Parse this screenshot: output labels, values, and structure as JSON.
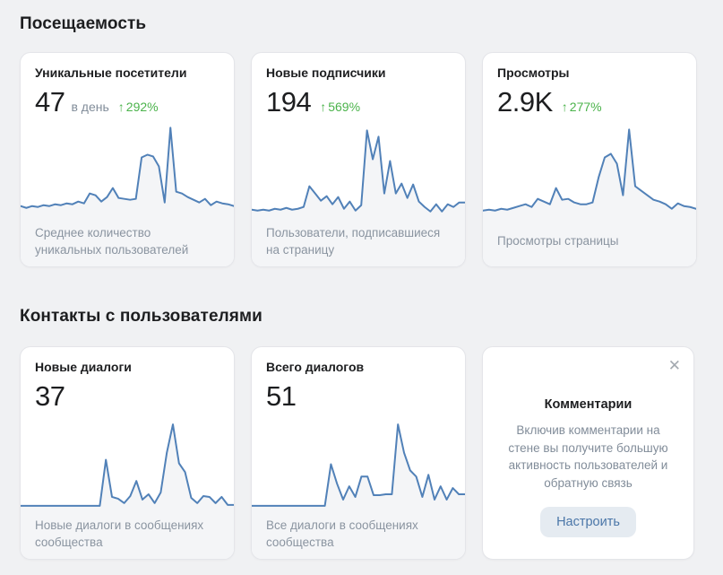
{
  "colors": {
    "page_bg": "#f0f1f3",
    "card_bg": "#ffffff",
    "line_blue": "#5181b8",
    "chart_fill": "#f4f5f7",
    "text_primary": "#1d1e20",
    "text_secondary": "#818c99",
    "trend_green": "#4bb34b",
    "button_bg": "#e5ebf1",
    "button_text": "#4a76a8",
    "close_icon": "#a3a9b0"
  },
  "sections": [
    {
      "title": "Посещаемость",
      "cards": [
        {
          "title": "Уникальные посетители",
          "value": "47",
          "unit": "в день",
          "trend_arrow": "↑",
          "trend": "292%",
          "caption": "Среднее количество уникальных пользователей"
        },
        {
          "title": "Новые подписчики",
          "value": "194",
          "trend_arrow": "↑",
          "trend": "569%",
          "caption": "Пользователи, подписавшиеся на страницу"
        },
        {
          "title": "Просмотры",
          "value": "2.9K",
          "trend_arrow": "↑",
          "trend": "277%",
          "caption": "Просмотры страницы"
        }
      ]
    },
    {
      "title": "Контакты с пользователями",
      "cards": [
        {
          "title": "Новые диалоги",
          "value": "37",
          "caption": "Новые диалоги в сообщениях сообщества"
        },
        {
          "title": "Всего диалогов",
          "value": "51",
          "caption": "Все диалоги в сообщениях сообщества"
        }
      ]
    }
  ],
  "promo": {
    "close_glyph": "✕",
    "title": "Комментарии",
    "text": "Включив комментарии на стене вы получите большую активность пользователей и обратную связь",
    "button_label": "Настроить"
  },
  "chart_data": [
    {
      "type": "line",
      "name": "Уникальные посетители",
      "note": "sparkline, no axes; values are relative heights 0-100",
      "color": "#5181b8",
      "fill": "#f4f5f7",
      "values": [
        8,
        6,
        8,
        7,
        9,
        8,
        10,
        9,
        11,
        10,
        13,
        11,
        22,
        20,
        13,
        18,
        28,
        17,
        16,
        15,
        16,
        62,
        65,
        63,
        52,
        12,
        95,
        24,
        22,
        18,
        15,
        12,
        16,
        9,
        13,
        11,
        10,
        8
      ]
    },
    {
      "type": "line",
      "name": "Новые подписчики",
      "note": "sparkline, no axes; values are relative heights 0-100",
      "color": "#5181b8",
      "fill": "#f4f5f7",
      "values": [
        4,
        3,
        4,
        3,
        5,
        4,
        6,
        4,
        5,
        7,
        30,
        22,
        14,
        19,
        10,
        18,
        5,
        13,
        3,
        9,
        92,
        60,
        85,
        22,
        58,
        22,
        33,
        17,
        32,
        13,
        7,
        2,
        10,
        2,
        10,
        7,
        12,
        12
      ]
    },
    {
      "type": "line",
      "name": "Просмотры",
      "note": "sparkline, no axes; values are relative heights 0-100",
      "color": "#5181b8",
      "fill": "#f4f5f7",
      "values": [
        3,
        4,
        3,
        5,
        4,
        6,
        8,
        10,
        7,
        16,
        13,
        10,
        28,
        15,
        16,
        12,
        10,
        10,
        12,
        40,
        62,
        66,
        55,
        20,
        93,
        30,
        25,
        20,
        15,
        13,
        10,
        5,
        11,
        8,
        7,
        5
      ]
    },
    {
      "type": "line",
      "name": "Новые диалоги",
      "note": "sparkline, no axes; values are relative heights 0-100",
      "color": "#5181b8",
      "fill": "#f4f5f7",
      "values": [
        0,
        0,
        0,
        0,
        0,
        0,
        0,
        0,
        0,
        0,
        0,
        0,
        0,
        0,
        52,
        10,
        8,
        3,
        11,
        28,
        7,
        13,
        3,
        15,
        60,
        92,
        48,
        38,
        9,
        3,
        11,
        10,
        3,
        10,
        1,
        1
      ]
    },
    {
      "type": "line",
      "name": "Всего диалогов",
      "note": "sparkline, no axes; values are relative heights 0-100",
      "color": "#5181b8",
      "fill": "#f4f5f7",
      "values": [
        0,
        0,
        0,
        0,
        0,
        0,
        0,
        0,
        0,
        0,
        0,
        0,
        0,
        47,
        25,
        7,
        22,
        10,
        33,
        33,
        12,
        12,
        13,
        13,
        92,
        60,
        40,
        33,
        10,
        35,
        7,
        22,
        7,
        20,
        13,
        13
      ]
    }
  ]
}
